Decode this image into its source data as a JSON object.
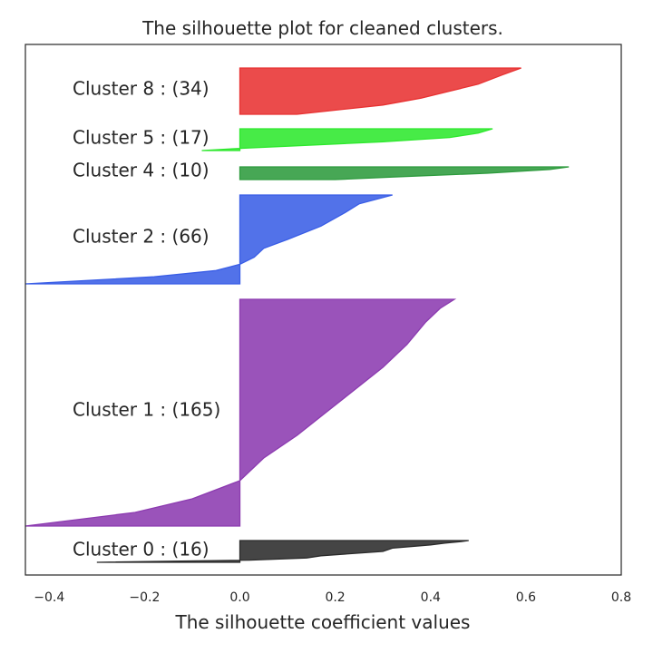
{
  "chart_data": {
    "type": "area",
    "title": "The silhouette plot for cleaned clusters.",
    "xlabel": "The silhouette coefficient values",
    "ylabel": "",
    "xlim": [
      -0.45,
      0.8
    ],
    "xticks": [
      "−0.4",
      "−0.2",
      "0.0",
      "0.2",
      "0.4",
      "0.6",
      "0.8"
    ],
    "xtick_values": [
      -0.4,
      -0.2,
      0.0,
      0.2,
      0.4,
      0.6,
      0.8
    ],
    "grid": false,
    "clusters": [
      {
        "label": "Cluster 0 : (16)",
        "size": 16,
        "color": "#2b2b2b",
        "profile": [
          [
            0,
            0.48
          ],
          [
            0.06,
            0.46
          ],
          [
            0.12,
            0.43
          ],
          [
            0.2,
            0.4
          ],
          [
            0.35,
            0.32
          ],
          [
            0.5,
            0.3
          ],
          [
            0.7,
            0.17
          ],
          [
            0.8,
            0.14
          ],
          [
            0.9,
            0.02
          ],
          [
            1,
            -0.3
          ]
        ]
      },
      {
        "label": "Cluster 1 : (165)",
        "size": 165,
        "color": "#8c3bb0",
        "profile": [
          [
            0,
            0.45
          ],
          [
            0.04,
            0.42
          ],
          [
            0.1,
            0.39
          ],
          [
            0.2,
            0.35
          ],
          [
            0.3,
            0.3
          ],
          [
            0.4,
            0.24
          ],
          [
            0.5,
            0.18
          ],
          [
            0.6,
            0.12
          ],
          [
            0.7,
            0.05
          ],
          [
            0.8,
            0.0
          ],
          [
            0.88,
            -0.1
          ],
          [
            0.94,
            -0.22
          ],
          [
            1,
            -0.45
          ]
        ]
      },
      {
        "label": "Cluster 2 : (66)",
        "size": 66,
        "color": "#3a5ee6",
        "profile": [
          [
            0,
            0.32
          ],
          [
            0.1,
            0.25
          ],
          [
            0.2,
            0.22
          ],
          [
            0.35,
            0.17
          ],
          [
            0.5,
            0.1
          ],
          [
            0.6,
            0.05
          ],
          [
            0.7,
            0.03
          ],
          [
            0.78,
            0.0
          ],
          [
            0.85,
            -0.05
          ],
          [
            0.92,
            -0.18
          ],
          [
            1,
            -0.45
          ]
        ]
      },
      {
        "label": "Cluster 4 : (10)",
        "size": 10,
        "color": "#2e9b3e",
        "profile": [
          [
            0,
            0.69
          ],
          [
            0.2,
            0.65
          ],
          [
            0.5,
            0.52
          ],
          [
            0.8,
            0.32
          ],
          [
            1,
            0.2
          ]
        ]
      },
      {
        "label": "Cluster 5 : (17)",
        "size": 17,
        "color": "#2ee82e",
        "profile": [
          [
            0,
            0.53
          ],
          [
            0.2,
            0.5
          ],
          [
            0.4,
            0.44
          ],
          [
            0.6,
            0.3
          ],
          [
            0.8,
            0.1
          ],
          [
            0.9,
            0.0
          ],
          [
            1,
            -0.08
          ]
        ]
      },
      {
        "label": "Cluster 8 : (34)",
        "size": 34,
        "color": "#e83232",
        "profile": [
          [
            0,
            0.59
          ],
          [
            0.15,
            0.55
          ],
          [
            0.35,
            0.5
          ],
          [
            0.5,
            0.44
          ],
          [
            0.65,
            0.38
          ],
          [
            0.8,
            0.3
          ],
          [
            1,
            0.12
          ]
        ]
      }
    ]
  }
}
